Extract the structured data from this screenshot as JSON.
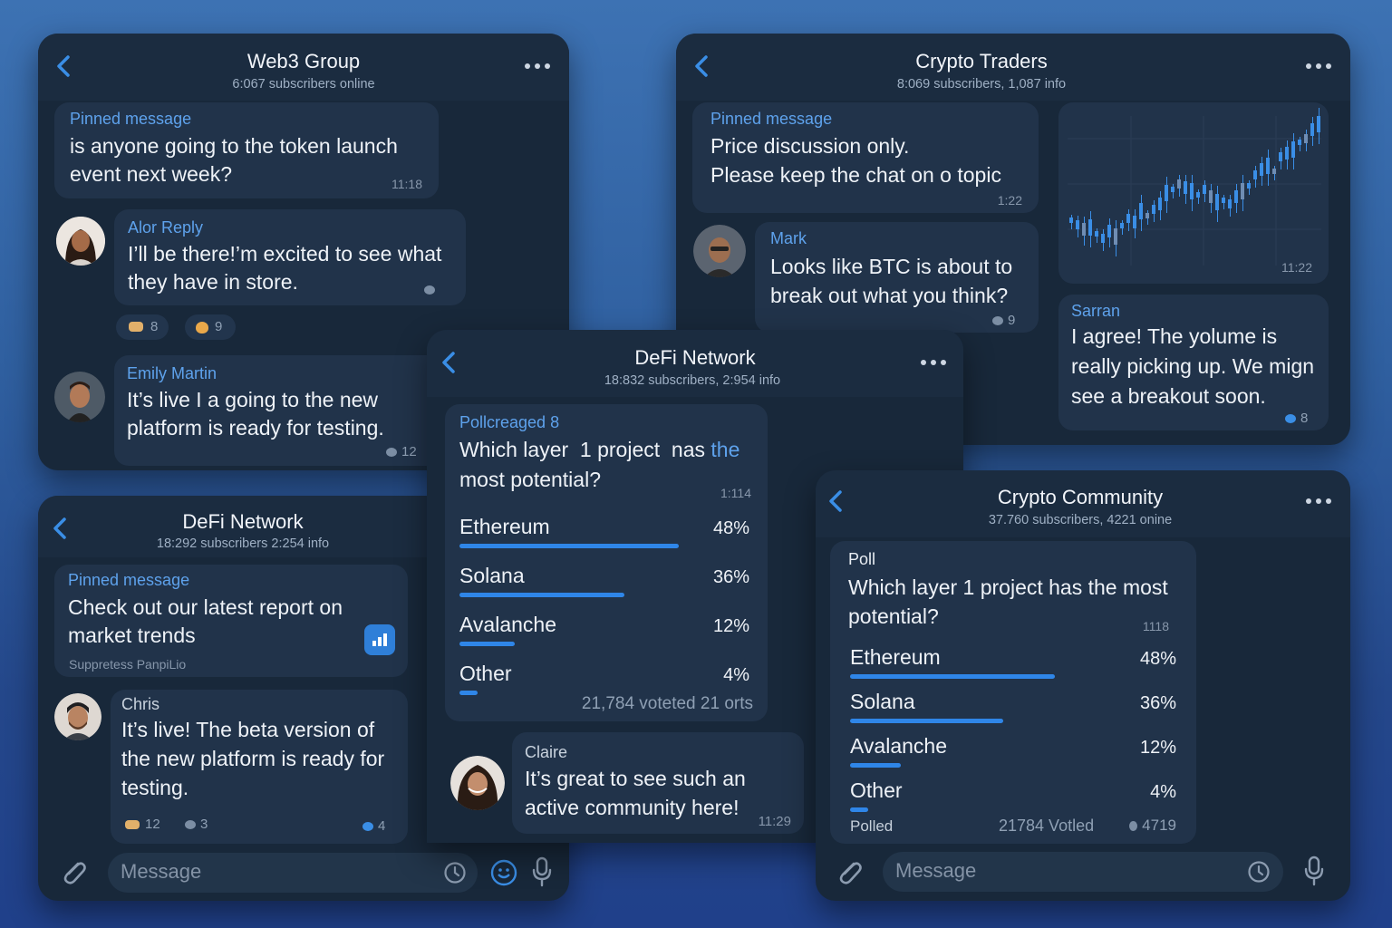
{
  "colors": {
    "accent": "#2f86e8",
    "panel": "#18283a",
    "bubble": "#21334a",
    "background": "#2f5f9f"
  },
  "web3": {
    "title": "Web3 Group",
    "subtitle": "6:067 subscribers online",
    "pinned": {
      "label": "Pinned message",
      "text1": "is anyone going to the token launch",
      "text2": "event next week?",
      "time": "11:18"
    },
    "msg1": {
      "name": "Alor Reply",
      "text1": "I’ll be there!’m excited to see what",
      "text2": "they have in store."
    },
    "reactions": [
      {
        "icon": "thumbs-up-icon",
        "count": "8"
      },
      {
        "icon": "fire-icon",
        "count": "9"
      }
    ],
    "msg2": {
      "name": "Emily Martin",
      "text1": "It’s live I a going to the new",
      "text2": "platform is ready for testing.",
      "count": "12"
    }
  },
  "traders": {
    "title": "Crypto Traders",
    "subtitle": "8:069 subscribers, 1,087 info",
    "pinned": {
      "label": "Pinned message",
      "text1": "Price discussion only.",
      "text2": "Please keep the chat on o topic",
      "time": "1:22"
    },
    "msg1": {
      "name": "Mark",
      "text1": "Looks like BTC is about to",
      "text2": "break out what you think?",
      "count": "9"
    },
    "chart_time": "11:22",
    "msg2": {
      "name": "Sarran",
      "text1": "I agree! The yolume is",
      "text2": "really picking up. We mign",
      "text3": "see a breakout soon.",
      "count": "8"
    }
  },
  "defi_top": {
    "title": "DeFi Network",
    "subtitle": "18:832 subscribers, 2:954 info",
    "poll": {
      "label": "Pollcreaged",
      "label_num": "8",
      "q1a": "Which layer  1 project  nas ",
      "q1b": "the",
      "q2": "most potential?",
      "time": "1:114",
      "options": [
        {
          "label": "Ethereum",
          "pct": "48%",
          "value": 48
        },
        {
          "label": "Solana",
          "pct": "36%",
          "value": 36
        },
        {
          "label": "Avalanche",
          "pct": "12%",
          "value": 12
        },
        {
          "label": "Other",
          "pct": "4%",
          "value": 4
        }
      ],
      "footer": "21,784  voteted  21  orts"
    },
    "msg": {
      "name": "Claire",
      "text1": "It’s great to see such an",
      "text2": "active community here!",
      "time": "11:29"
    }
  },
  "defi_bottom": {
    "title": "DeFi Network",
    "subtitle": "18:292 subscribers 2:254 info",
    "pinned": {
      "label": "Pinned message",
      "text1": "Check out our latest report on",
      "text2": "market trends",
      "footer": "Suppretess  PanpiLio"
    },
    "msg": {
      "name": "Chris",
      "text1": "It’s live!  The beta version of",
      "text2": "the new platform is ready for",
      "text3": "testing.",
      "likes": "12",
      "comments": "3",
      "views": "4"
    },
    "input_placeholder": "Message"
  },
  "community": {
    "title": "Crypto Community",
    "subtitle": "37.760 subscribers,  4221 onine",
    "poll": {
      "label": "Poll",
      "q1": "Which layer 1 project has the most",
      "q2": "potential?",
      "time": "1118",
      "options": [
        {
          "label": "Ethereum",
          "pct": "48%",
          "value": 48
        },
        {
          "label": "Solana",
          "pct": "36%",
          "value": 36
        },
        {
          "label": "Avalanche",
          "pct": "12%",
          "value": 12
        },
        {
          "label": "Other",
          "pct": "4%",
          "value": 4
        }
      ],
      "footer_left": "Polled",
      "footer_mid": "21784  Votled",
      "footer_right": "4719"
    },
    "input_placeholder": "Message"
  }
}
